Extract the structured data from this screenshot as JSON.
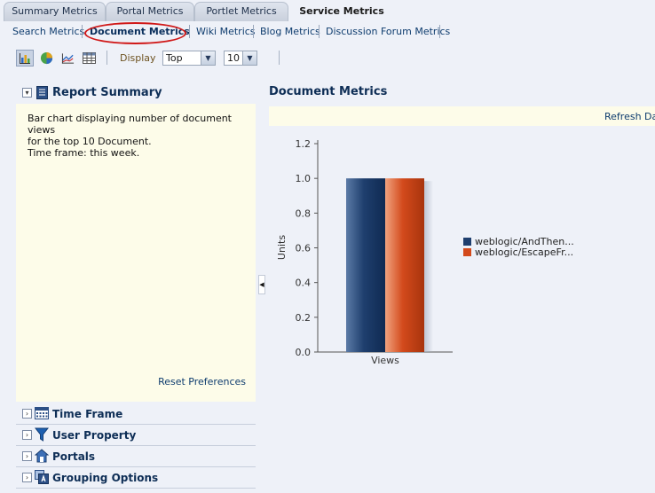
{
  "tabs": [
    {
      "label": "Summary Metrics",
      "active": false
    },
    {
      "label": "Portal Metrics",
      "active": false
    },
    {
      "label": "Portlet Metrics",
      "active": false
    },
    {
      "label": "Service Metrics",
      "active": true
    }
  ],
  "subnav": [
    {
      "label": "Search Metrics",
      "active": false
    },
    {
      "label": "Document Metrics",
      "active": true
    },
    {
      "label": "Wiki Metrics",
      "active": false
    },
    {
      "label": "Blog Metrics",
      "active": false
    },
    {
      "label": "Discussion Forum Metrics",
      "active": false
    }
  ],
  "toolbar": {
    "icons": [
      "bar-chart-icon",
      "pie-chart-icon",
      "line-chart-icon",
      "table-view-icon"
    ],
    "display_label": "Display",
    "display_value": "Top",
    "count_value": "10"
  },
  "left": {
    "report_summary_title": "Report Summary",
    "summary_lines": [
      "Bar chart displaying number of document views",
      "for the top 10 Document.",
      "Time frame: this week."
    ],
    "reset_label": "Reset Preferences",
    "sections": [
      {
        "label": "Time Frame",
        "icon": "calendar-icon"
      },
      {
        "label": "User Property",
        "icon": "filter-funnel-icon"
      },
      {
        "label": "Portals",
        "icon": "portal-tree-icon"
      },
      {
        "label": "Grouping Options",
        "icon": "grouping-icon"
      }
    ]
  },
  "main": {
    "title": "Document Metrics",
    "refresh_label": "Refresh Dat"
  },
  "colors": {
    "series1": "#1f3f6e",
    "series2": "#d34a1c",
    "accent": "#0e2e56",
    "highlight": "#d01818"
  },
  "chart_data": {
    "type": "bar",
    "categories": [
      "Views"
    ],
    "series": [
      {
        "name": "weblogic/AndThen...",
        "values": [
          1.0
        ]
      },
      {
        "name": "weblogic/EscapeFr...",
        "values": [
          1.0
        ]
      }
    ],
    "ylabel": "Units",
    "xlabel": "",
    "ylim": [
      0,
      1.2
    ],
    "yticks": [
      "0.0",
      "0.2",
      "0.4",
      "0.6",
      "0.8",
      "1.0",
      "1.2"
    ],
    "grid": false,
    "legend": "right"
  }
}
